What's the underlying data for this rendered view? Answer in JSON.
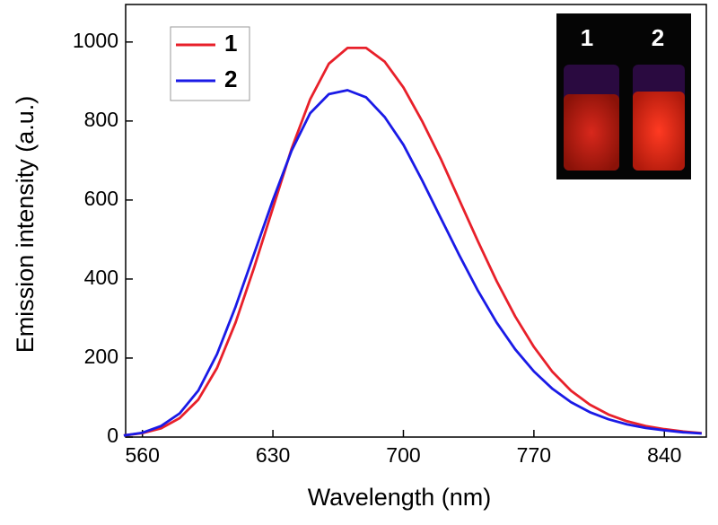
{
  "chart_data": {
    "type": "line",
    "x_label": "Wavelength (nm)",
    "y_label": "Emission intensity (a.u.)",
    "x": [
      550,
      560,
      570,
      580,
      590,
      600,
      610,
      620,
      630,
      640,
      650,
      660,
      670,
      680,
      690,
      700,
      710,
      720,
      730,
      740,
      750,
      760,
      770,
      780,
      790,
      800,
      810,
      820,
      830,
      840,
      850,
      860
    ],
    "series": [
      {
        "name": "1",
        "color": "#e8202a",
        "values": [
          4,
          10,
          22,
          48,
          95,
          175,
          290,
          430,
          580,
          730,
          855,
          945,
          985,
          985,
          950,
          885,
          800,
          705,
          600,
          495,
          395,
          305,
          228,
          165,
          117,
          82,
          57,
          40,
          28,
          20,
          14,
          10
        ]
      },
      {
        "name": "2",
        "color": "#1a1ae6",
        "values": [
          4,
          11,
          28,
          60,
          118,
          210,
          330,
          465,
          600,
          725,
          820,
          868,
          878,
          860,
          810,
          740,
          650,
          555,
          460,
          370,
          290,
          222,
          166,
          122,
          88,
          63,
          45,
          32,
          23,
          17,
          12,
          9
        ]
      }
    ],
    "xlim": [
      551,
      862.5
    ],
    "ylim": [
      0,
      1095
    ],
    "xticks": [
      560,
      630,
      700,
      770,
      840
    ],
    "yticks": [
      0,
      200,
      400,
      600,
      800,
      1000
    ],
    "legend": "top-left",
    "inset": {
      "labels": [
        "1",
        "2"
      ]
    }
  }
}
